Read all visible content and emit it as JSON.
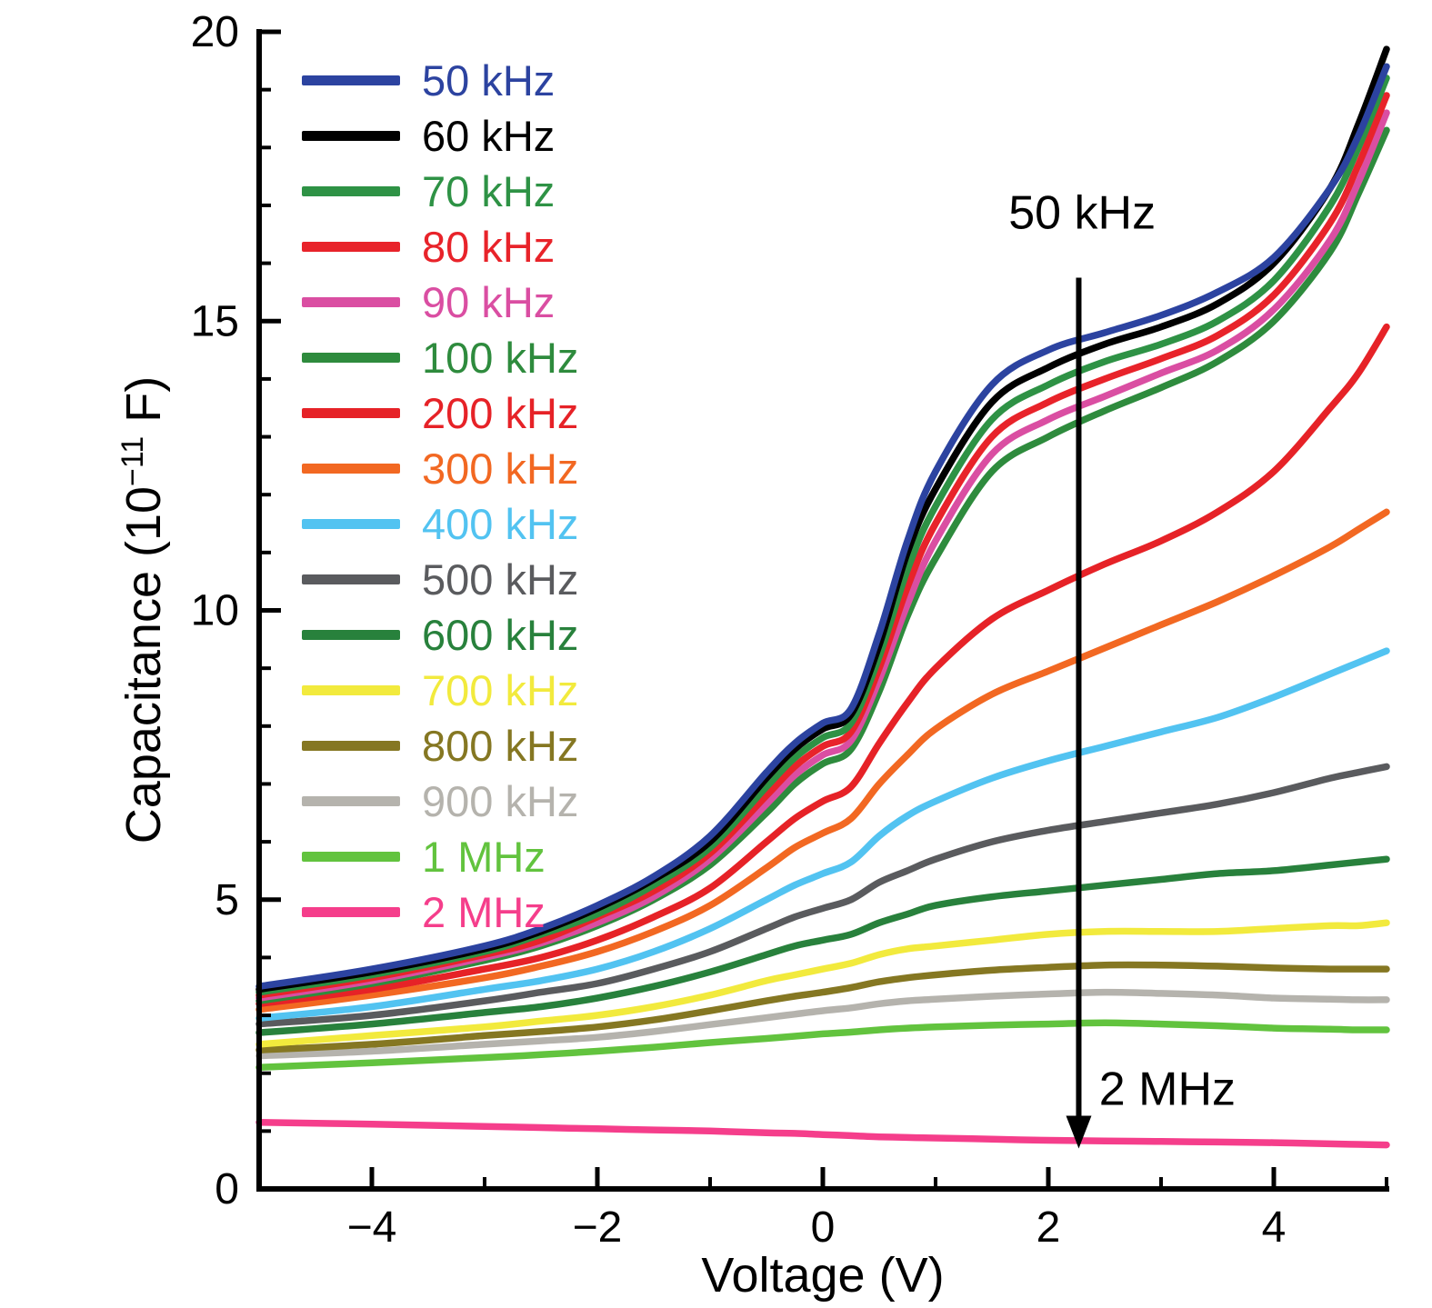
{
  "chart_data": {
    "type": "line",
    "title": "",
    "xlabel": "Voltage (V)",
    "ylabel": "Capacitance (10−11 F)",
    "ylabel_parts": {
      "pre": "Capacitance (10",
      "sup": "−11",
      "post": " F)"
    },
    "xlim": [
      -5,
      5
    ],
    "ylim": [
      0,
      20
    ],
    "grid": false,
    "legend_position": "upper-left",
    "x_ticks": [
      {
        "v": -4,
        "label": "−4"
      },
      {
        "v": -2,
        "label": "−2"
      },
      {
        "v": 0,
        "label": "0"
      },
      {
        "v": 2,
        "label": "2"
      },
      {
        "v": 4,
        "label": "4"
      }
    ],
    "x_minor_ticks": [
      -5,
      -3,
      -1,
      1,
      3,
      5
    ],
    "y_ticks": [
      {
        "v": 0,
        "label": "0"
      },
      {
        "v": 5,
        "label": "5"
      },
      {
        "v": 10,
        "label": "10"
      },
      {
        "v": 15,
        "label": "15"
      },
      {
        "v": 20,
        "label": "20"
      }
    ],
    "y_minor_ticks": [
      1,
      2,
      3,
      4,
      6,
      7,
      8,
      9,
      11,
      12,
      13,
      14,
      16,
      17,
      18,
      19
    ],
    "x": [
      -5,
      -4,
      -3,
      -2.5,
      -2,
      -1.5,
      -1,
      -0.5,
      -0.25,
      0,
      0.25,
      0.5,
      0.75,
      1,
      1.5,
      2,
      2.5,
      3,
      3.5,
      4,
      4.5,
      4.75,
      5
    ],
    "series": [
      {
        "name": "50 kHz",
        "color": "#2c43a0",
        "values": [
          3.5,
          3.8,
          4.2,
          4.5,
          4.9,
          5.4,
          6.1,
          7.2,
          7.7,
          8.05,
          8.3,
          9.6,
          11.2,
          12.4,
          13.9,
          14.5,
          14.8,
          15.1,
          15.5,
          16.1,
          17.3,
          18.2,
          19.4
        ]
      },
      {
        "name": "60 kHz",
        "color": "#000000",
        "values": [
          3.45,
          3.75,
          4.15,
          4.45,
          4.85,
          5.35,
          6.0,
          7.1,
          7.6,
          7.95,
          8.2,
          9.4,
          11.0,
          12.1,
          13.6,
          14.2,
          14.6,
          14.9,
          15.3,
          16.0,
          17.3,
          18.4,
          19.7
        ]
      },
      {
        "name": "70 kHz",
        "color": "#2e9245",
        "values": [
          3.4,
          3.7,
          4.1,
          4.4,
          4.75,
          5.25,
          5.9,
          6.95,
          7.45,
          7.8,
          8.05,
          9.2,
          10.7,
          11.8,
          13.3,
          13.9,
          14.3,
          14.6,
          15.0,
          15.7,
          17.0,
          18.0,
          19.2
        ]
      },
      {
        "name": "80 kHz",
        "color": "#e8232a",
        "values": [
          3.35,
          3.65,
          4.05,
          4.3,
          4.7,
          5.15,
          5.8,
          6.8,
          7.3,
          7.65,
          7.9,
          9.0,
          10.4,
          11.5,
          13.0,
          13.6,
          14.0,
          14.35,
          14.75,
          15.45,
          16.7,
          17.7,
          18.9
        ]
      },
      {
        "name": "90 kHz",
        "color": "#da4ea2",
        "values": [
          3.3,
          3.6,
          4.0,
          4.25,
          4.6,
          5.05,
          5.7,
          6.65,
          7.15,
          7.5,
          7.75,
          8.8,
          10.1,
          11.2,
          12.7,
          13.3,
          13.7,
          14.1,
          14.5,
          15.2,
          16.4,
          17.4,
          18.6
        ]
      },
      {
        "name": "100 kHz",
        "color": "#2e8b3d",
        "values": [
          3.25,
          3.55,
          3.95,
          4.2,
          4.55,
          5.0,
          5.6,
          6.5,
          7.0,
          7.35,
          7.6,
          8.6,
          9.9,
          10.9,
          12.4,
          13.0,
          13.45,
          13.85,
          14.3,
          15.0,
          16.2,
          17.2,
          18.3
        ]
      },
      {
        "name": "200 kHz",
        "color": "#e62227",
        "values": [
          3.2,
          3.45,
          3.8,
          4.0,
          4.3,
          4.7,
          5.2,
          6.0,
          6.4,
          6.7,
          6.95,
          7.7,
          8.4,
          9.0,
          9.85,
          10.35,
          10.8,
          11.2,
          11.7,
          12.4,
          13.5,
          14.1,
          14.9
        ]
      },
      {
        "name": "300 kHz",
        "color": "#f26822",
        "values": [
          3.1,
          3.35,
          3.65,
          3.85,
          4.1,
          4.45,
          4.9,
          5.55,
          5.9,
          6.15,
          6.4,
          7.0,
          7.5,
          7.95,
          8.55,
          8.95,
          9.35,
          9.75,
          10.15,
          10.6,
          11.1,
          11.4,
          11.7
        ]
      },
      {
        "name": "400 kHz",
        "color": "#52c3f1",
        "values": [
          2.95,
          3.15,
          3.45,
          3.6,
          3.8,
          4.1,
          4.5,
          5.0,
          5.25,
          5.45,
          5.65,
          6.1,
          6.45,
          6.7,
          7.1,
          7.4,
          7.65,
          7.9,
          8.15,
          8.5,
          8.9,
          9.1,
          9.3
        ]
      },
      {
        "name": "500 kHz",
        "color": "#5a5b5e",
        "values": [
          2.85,
          3.0,
          3.25,
          3.4,
          3.55,
          3.8,
          4.1,
          4.5,
          4.7,
          4.85,
          5.0,
          5.3,
          5.5,
          5.7,
          6.0,
          6.2,
          6.35,
          6.5,
          6.65,
          6.85,
          7.1,
          7.2,
          7.3
        ]
      },
      {
        "name": "600 kHz",
        "color": "#28813c",
        "values": [
          2.7,
          2.85,
          3.05,
          3.15,
          3.3,
          3.5,
          3.75,
          4.05,
          4.2,
          4.3,
          4.4,
          4.6,
          4.75,
          4.9,
          5.05,
          5.15,
          5.25,
          5.35,
          5.45,
          5.5,
          5.6,
          5.65,
          5.7
        ]
      },
      {
        "name": "700 kHz",
        "color": "#f2ea3d",
        "values": [
          2.5,
          2.65,
          2.8,
          2.9,
          3.0,
          3.15,
          3.35,
          3.6,
          3.7,
          3.8,
          3.9,
          4.05,
          4.15,
          4.2,
          4.3,
          4.4,
          4.45,
          4.45,
          4.45,
          4.5,
          4.55,
          4.55,
          4.6
        ]
      },
      {
        "name": "800 kHz",
        "color": "#857722",
        "values": [
          2.4,
          2.5,
          2.65,
          2.72,
          2.8,
          2.92,
          3.08,
          3.25,
          3.33,
          3.4,
          3.48,
          3.58,
          3.65,
          3.7,
          3.78,
          3.83,
          3.87,
          3.87,
          3.85,
          3.82,
          3.8,
          3.8,
          3.8
        ]
      },
      {
        "name": "900 kHz",
        "color": "#b5b3ad",
        "values": [
          2.3,
          2.38,
          2.5,
          2.56,
          2.62,
          2.72,
          2.84,
          2.96,
          3.02,
          3.08,
          3.13,
          3.2,
          3.25,
          3.28,
          3.33,
          3.37,
          3.4,
          3.38,
          3.35,
          3.3,
          3.28,
          3.27,
          3.27
        ]
      },
      {
        "name": "1 MHz",
        "color": "#62c33e",
        "values": [
          2.1,
          2.18,
          2.27,
          2.32,
          2.38,
          2.45,
          2.53,
          2.6,
          2.64,
          2.68,
          2.71,
          2.75,
          2.78,
          2.8,
          2.83,
          2.85,
          2.87,
          2.85,
          2.82,
          2.78,
          2.76,
          2.75,
          2.75
        ]
      },
      {
        "name": "2 MHz",
        "color": "#f53e8b",
        "values": [
          1.15,
          1.12,
          1.08,
          1.06,
          1.04,
          1.02,
          1.0,
          0.97,
          0.96,
          0.94,
          0.92,
          0.9,
          0.89,
          0.88,
          0.86,
          0.84,
          0.83,
          0.82,
          0.81,
          0.8,
          0.78,
          0.77,
          0.76
        ]
      }
    ],
    "annotations": [
      {
        "type": "text",
        "text": "50 kHz",
        "x": 2.3,
        "y": 16.6,
        "anchor": "middle"
      },
      {
        "type": "arrow",
        "x": 2.27,
        "y_from": 15.75,
        "y_to": 0.7
      },
      {
        "type": "text",
        "text": "2 MHz",
        "x": 2.45,
        "y": 1.45,
        "anchor": "start"
      }
    ]
  }
}
